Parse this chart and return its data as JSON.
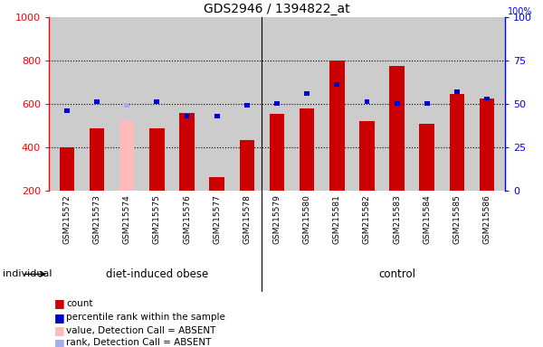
{
  "title": "GDS2946 / 1394822_at",
  "samples": [
    "GSM215572",
    "GSM215573",
    "GSM215574",
    "GSM215575",
    "GSM215576",
    "GSM215577",
    "GSM215578",
    "GSM215579",
    "GSM215580",
    "GSM215581",
    "GSM215582",
    "GSM215583",
    "GSM215584",
    "GSM215585",
    "GSM215586"
  ],
  "counts": [
    400,
    490,
    520,
    490,
    560,
    265,
    435,
    555,
    580,
    800,
    520,
    775,
    510,
    645,
    625
  ],
  "ranks_pct": [
    45,
    50,
    48,
    50,
    42,
    42,
    48,
    49,
    55,
    60,
    50,
    49,
    49,
    56,
    52
  ],
  "absent": [
    false,
    false,
    true,
    false,
    false,
    false,
    false,
    false,
    false,
    false,
    false,
    false,
    false,
    false,
    false
  ],
  "groups": [
    "diet-induced obese",
    "diet-induced obese",
    "diet-induced obese",
    "diet-induced obese",
    "diet-induced obese",
    "diet-induced obese",
    "diet-induced obese",
    "control",
    "control",
    "control",
    "control",
    "control",
    "control",
    "control",
    "control"
  ],
  "bar_color": "#cc0000",
  "rank_color": "#0000cc",
  "absent_bar_color": "#ffbbbb",
  "absent_rank_color": "#aaaaee",
  "bg_color": "#cccccc",
  "xtick_bg": "#cccccc",
  "group_color": "#55dd55",
  "ylim_left": [
    200,
    1000
  ],
  "ylim_right": [
    0,
    100
  ],
  "yticks_left": [
    200,
    400,
    600,
    800,
    1000
  ],
  "yticks_right": [
    0,
    25,
    50,
    75,
    100
  ],
  "bar_bottom": 200,
  "individual_label": "individual",
  "group_split": 6.5,
  "dio_label": "diet-induced obese",
  "ctrl_label": "control"
}
